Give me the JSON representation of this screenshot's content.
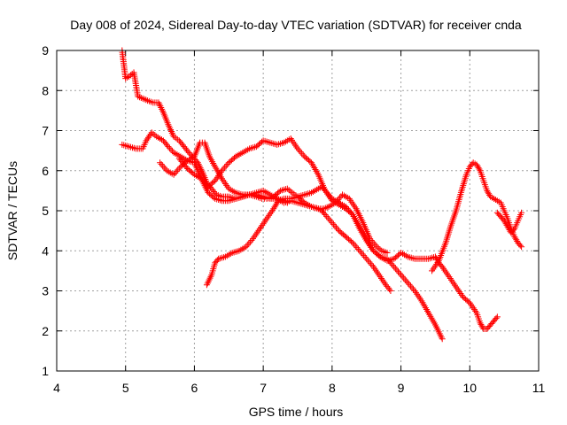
{
  "chart_data": {
    "type": "scatter",
    "title": "Day 008 of 2024, Sidereal Day-to-day VTEC variation (SDTVAR) for receiver cnda",
    "xlabel": "GPS time / hours",
    "ylabel": "SDTVAR / TECUs",
    "xlim": [
      4,
      11
    ],
    "ylim": [
      1,
      9
    ],
    "x_ticks": [
      "4",
      "5",
      "6",
      "7",
      "8",
      "9",
      "10",
      "11"
    ],
    "y_ticks": [
      "1",
      "2",
      "3",
      "4",
      "5",
      "6",
      "7",
      "8",
      "9"
    ],
    "grid": true,
    "marker": "plus",
    "series_color": "#ff0000",
    "series": [
      {
        "x": [
          4.95,
          5.0,
          5.05,
          5.12,
          5.18,
          5.25,
          5.32,
          5.4,
          5.48,
          5.55,
          5.62,
          5.7,
          5.78,
          5.85,
          5.92,
          6.0,
          6.05,
          6.12,
          6.18,
          6.25,
          6.32,
          6.4,
          6.5,
          6.6,
          6.7,
          6.8,
          6.9,
          7.0,
          7.1,
          7.2,
          7.3,
          7.35
        ],
        "y": [
          9.0,
          8.3,
          8.35,
          8.45,
          7.85,
          7.8,
          7.75,
          7.7,
          7.7,
          7.45,
          7.15,
          6.85,
          6.75,
          6.6,
          6.45,
          6.3,
          6.2,
          5.95,
          5.7,
          5.55,
          5.4,
          5.35,
          5.35,
          5.3,
          5.35,
          5.4,
          5.4,
          5.35,
          5.3,
          5.3,
          5.25,
          5.2
        ]
      },
      {
        "x": [
          4.95,
          5.05,
          5.15,
          5.25,
          5.3,
          5.38,
          5.45,
          5.55,
          5.62,
          5.7,
          5.8,
          5.9,
          6.0,
          6.08,
          6.15,
          6.22,
          6.3,
          6.4,
          6.5,
          6.6,
          6.7,
          6.8,
          6.9,
          6.98,
          7.05,
          7.15,
          7.25,
          7.35,
          7.42,
          7.5,
          7.6,
          7.7,
          7.8,
          7.88,
          7.95,
          8.05,
          8.15,
          8.25,
          8.35,
          8.45,
          8.55,
          8.65,
          8.72,
          8.8
        ],
        "y": [
          6.65,
          6.6,
          6.55,
          6.55,
          6.75,
          6.95,
          6.85,
          6.75,
          6.6,
          6.45,
          6.35,
          6.25,
          6.35,
          6.7,
          6.7,
          6.35,
          6.1,
          5.8,
          5.55,
          5.45,
          5.4,
          5.4,
          5.35,
          5.3,
          5.3,
          5.35,
          5.5,
          5.55,
          5.45,
          5.35,
          5.2,
          5.1,
          5.05,
          5.05,
          5.1,
          5.2,
          5.4,
          5.3,
          5.05,
          4.7,
          4.3,
          4.1,
          4.0,
          3.95
        ]
      },
      {
        "x": [
          5.5,
          5.6,
          5.7,
          5.8,
          5.9,
          6.0,
          6.1,
          6.2,
          6.3,
          6.4,
          6.5,
          6.6,
          6.7,
          6.8,
          6.9,
          7.0,
          7.1,
          7.2,
          7.3,
          7.4,
          7.5,
          7.6,
          7.7,
          7.8,
          7.85,
          7.9,
          8.0,
          8.1,
          8.2,
          8.3,
          8.4,
          8.5,
          8.6,
          8.7,
          8.78,
          8.85
        ],
        "y": [
          6.2,
          6.0,
          5.9,
          6.1,
          6.25,
          6.2,
          5.8,
          5.45,
          5.3,
          5.25,
          5.25,
          5.3,
          5.35,
          5.4,
          5.45,
          5.5,
          5.4,
          5.3,
          5.2,
          5.25,
          5.2,
          5.15,
          5.1,
          5.05,
          5.0,
          4.9,
          4.7,
          4.5,
          4.35,
          4.2,
          4.0,
          3.8,
          3.6,
          3.35,
          3.15,
          3.0
        ]
      },
      {
        "x": [
          5.78,
          5.9,
          6.0,
          6.1,
          6.2,
          6.3,
          6.4,
          6.5,
          6.6,
          6.7,
          6.8,
          6.9,
          7.0,
          7.1,
          7.2,
          7.3,
          7.4,
          7.5,
          7.6,
          7.7,
          7.8,
          7.9,
          8.0,
          8.1,
          8.2,
          8.3,
          8.4,
          8.5,
          8.6,
          8.7,
          8.8,
          8.9,
          9.0,
          9.1,
          9.2,
          9.3,
          9.4,
          9.5,
          9.6
        ],
        "y": [
          6.3,
          6.05,
          5.9,
          5.8,
          5.6,
          5.75,
          6.0,
          6.2,
          6.35,
          6.45,
          6.55,
          6.6,
          6.75,
          6.7,
          6.65,
          6.7,
          6.8,
          6.55,
          6.35,
          6.2,
          5.9,
          5.5,
          5.3,
          5.2,
          5.1,
          4.9,
          4.55,
          4.25,
          4.0,
          3.85,
          3.8,
          3.6,
          3.4,
          3.2,
          3.0,
          2.75,
          2.45,
          2.15,
          1.8
        ]
      },
      {
        "x": [
          6.18,
          6.25,
          6.3,
          6.35,
          6.45,
          6.55,
          6.65,
          6.75,
          6.85,
          6.95,
          7.05,
          7.15,
          7.22,
          7.3,
          7.4,
          7.5,
          7.6,
          7.7,
          7.8,
          7.85,
          7.9,
          8.0,
          8.1,
          8.2,
          8.3,
          8.4,
          8.5,
          8.6,
          8.7,
          8.8,
          8.9,
          9.0,
          9.1,
          9.2,
          9.3,
          9.4,
          9.5,
          9.55,
          9.6,
          9.7,
          9.8,
          9.9,
          10.0,
          10.1,
          10.15,
          10.2,
          10.25,
          10.3,
          10.35,
          10.4
        ],
        "y": [
          3.15,
          3.4,
          3.7,
          3.8,
          3.85,
          3.95,
          4.0,
          4.1,
          4.3,
          4.55,
          4.8,
          5.05,
          5.25,
          5.3,
          5.3,
          5.35,
          5.4,
          5.45,
          5.55,
          5.6,
          5.5,
          5.25,
          5.15,
          5.05,
          4.9,
          4.6,
          4.3,
          4.0,
          3.85,
          3.75,
          3.8,
          3.95,
          3.85,
          3.8,
          3.8,
          3.8,
          3.85,
          3.7,
          3.6,
          3.35,
          3.1,
          2.85,
          2.7,
          2.45,
          2.2,
          2.05,
          2.05,
          2.15,
          2.25,
          2.35
        ]
      },
      {
        "x": [
          9.45,
          9.55,
          9.65,
          9.72,
          9.8,
          9.88,
          9.95,
          10.0,
          10.05,
          10.1,
          10.15,
          10.2,
          10.25,
          10.3,
          10.35,
          10.45,
          10.5,
          10.55,
          10.6,
          10.65,
          10.7,
          10.75
        ],
        "y": [
          3.5,
          3.75,
          4.2,
          4.6,
          5.0,
          5.5,
          5.9,
          6.1,
          6.2,
          6.15,
          6.0,
          5.75,
          5.5,
          5.35,
          5.3,
          5.2,
          5.0,
          4.8,
          4.55,
          4.35,
          4.2,
          4.1
        ]
      },
      {
        "x": [
          10.4,
          10.45,
          10.5,
          10.55,
          10.6,
          10.65,
          10.7,
          10.75
        ],
        "y": [
          4.95,
          4.85,
          4.75,
          4.6,
          4.45,
          4.55,
          4.75,
          4.95
        ]
      }
    ]
  }
}
